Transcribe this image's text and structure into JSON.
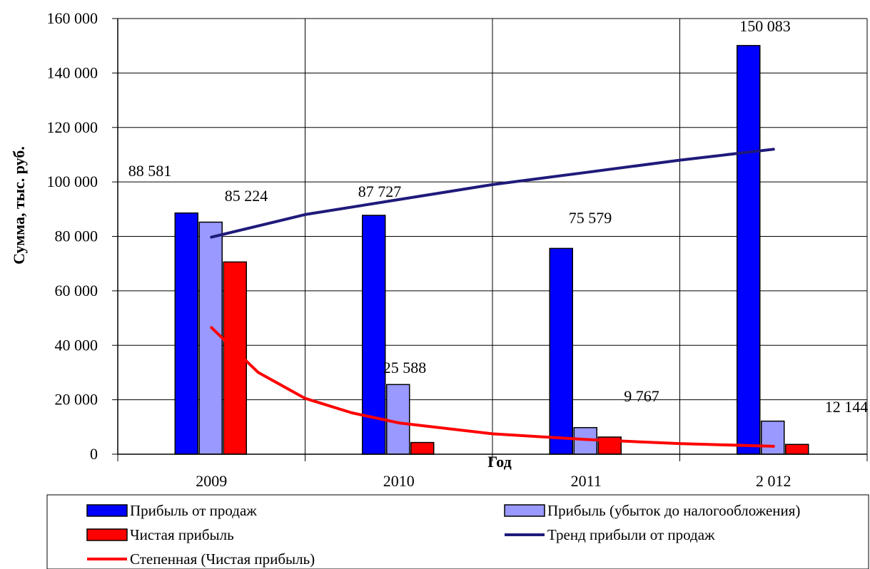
{
  "chart_data": {
    "type": "bar",
    "title": "",
    "xlabel": "Год",
    "ylabel": "Сумма, тыс. руб.",
    "ylim": [
      0,
      160000
    ],
    "yticks": [
      0,
      20000,
      40000,
      60000,
      80000,
      100000,
      120000,
      140000,
      160000
    ],
    "ytick_labels": [
      "0",
      "20 000",
      "40 000",
      "60 000",
      "80 000",
      "100 000",
      "120 000",
      "140 000",
      "160 000"
    ],
    "categories": [
      "2009",
      "2010",
      "2011",
      "2 012"
    ],
    "grid": true,
    "legend_position": "bottom",
    "series": [
      {
        "name": "Прибыль от продаж",
        "color": "#0000ff",
        "values": [
          88581,
          87727,
          75579,
          150083
        ],
        "labels": [
          "88 581",
          "87 727",
          "75 579",
          "150 083"
        ]
      },
      {
        "name": "Прибыль (убыток до налогообложения)",
        "color": "#9999ff",
        "values": [
          85224,
          25588,
          9767,
          12144
        ],
        "labels": [
          "85 224",
          "25 588",
          "9 767",
          "12 144"
        ]
      },
      {
        "name": "Чистая прибыль",
        "color": "#ff0000",
        "values": [
          70600,
          4300,
          6300,
          3600
        ]
      }
    ],
    "trendlines": [
      {
        "name": "Тренд прибыли от продаж",
        "color": "#1f1a7a",
        "type": "power",
        "x": [
          1,
          1.5,
          2,
          2.5,
          3,
          3.5,
          4
        ],
        "values": [
          79700,
          88000,
          93500,
          99000,
          103500,
          108000,
          112000
        ]
      },
      {
        "name": "Степенная (Чистая прибыль)",
        "color": "#ff0000",
        "type": "power",
        "x": [
          1,
          1.25,
          1.5,
          1.75,
          2,
          2.5,
          3,
          3.5,
          4
        ],
        "values": [
          46500,
          30000,
          20500,
          15200,
          11500,
          7500,
          5400,
          3900,
          2900
        ]
      }
    ]
  }
}
